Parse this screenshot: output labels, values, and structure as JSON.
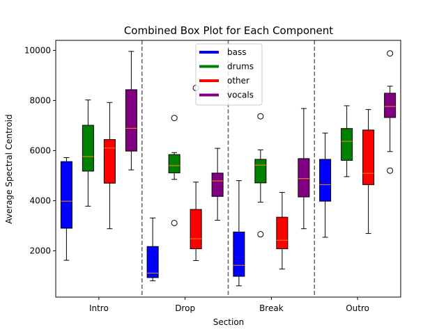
{
  "chart_data": {
    "type": "box",
    "title": "Combined Box Plot for Each Component",
    "xlabel": "Section",
    "ylabel": "Average Spectral Centroid",
    "categories": [
      "Intro",
      "Drop",
      "Break",
      "Outro"
    ],
    "ylim": [
      150,
      10400
    ],
    "yticks": [
      2000,
      4000,
      6000,
      8000,
      10000
    ],
    "grid": false,
    "legend_position": "top-center",
    "section_dividers": true,
    "series": [
      {
        "name": "bass",
        "color": "#0000ff",
        "boxes": [
          {
            "whisker_low": 1620,
            "q1": 2900,
            "median": 3980,
            "q3": 5560,
            "whisker_high": 5720,
            "outliers": []
          },
          {
            "whisker_low": 800,
            "q1": 930,
            "median": 1110,
            "q3": 2170,
            "whisker_high": 3310,
            "outliers": []
          },
          {
            "whisker_low": 600,
            "q1": 980,
            "median": 1420,
            "q3": 2750,
            "whisker_high": 4800,
            "outliers": []
          },
          {
            "whisker_low": 2540,
            "q1": 3980,
            "median": 4640,
            "q3": 5650,
            "whisker_high": 6700,
            "outliers": []
          }
        ]
      },
      {
        "name": "drums",
        "color": "#008000",
        "boxes": [
          {
            "whisker_low": 3780,
            "q1": 5180,
            "median": 5760,
            "q3": 7010,
            "whisker_high": 8020,
            "outliers": []
          },
          {
            "whisker_low": 4850,
            "q1": 5110,
            "median": 5400,
            "q3": 5840,
            "whisker_high": 5920,
            "outliers": [
              7300,
              3110
            ]
          },
          {
            "whisker_low": 3940,
            "q1": 4710,
            "median": 5420,
            "q3": 5650,
            "whisker_high": 6030,
            "outliers": [
              7370,
              2660
            ]
          },
          {
            "whisker_low": 4960,
            "q1": 5610,
            "median": 6370,
            "q3": 6880,
            "whisker_high": 7790,
            "outliers": []
          }
        ]
      },
      {
        "name": "other",
        "color": "#ff0000",
        "boxes": [
          {
            "whisker_low": 2880,
            "q1": 4700,
            "median": 6100,
            "q3": 6440,
            "whisker_high": 7920,
            "outliers": []
          },
          {
            "whisker_low": 1610,
            "q1": 2080,
            "median": 2480,
            "q3": 3650,
            "whisker_high": 4740,
            "outliers": [
              8500
            ]
          },
          {
            "whisker_low": 1270,
            "q1": 2080,
            "median": 2420,
            "q3": 3340,
            "whisker_high": 4330,
            "outliers": []
          },
          {
            "whisker_low": 2690,
            "q1": 4640,
            "median": 5090,
            "q3": 6820,
            "whisker_high": 7640,
            "outliers": []
          }
        ]
      },
      {
        "name": "vocals",
        "color": "#800080",
        "boxes": [
          {
            "whisker_low": 5230,
            "q1": 5980,
            "median": 6890,
            "q3": 8430,
            "whisker_high": 9960,
            "outliers": []
          },
          {
            "whisker_low": 3220,
            "q1": 4170,
            "median": 4790,
            "q3": 5100,
            "whisker_high": 6090,
            "outliers": []
          },
          {
            "whisker_low": 2880,
            "q1": 4150,
            "median": 4880,
            "q3": 5680,
            "whisker_high": 7680,
            "outliers": []
          },
          {
            "whisker_low": 5960,
            "q1": 7320,
            "median": 7760,
            "q3": 8290,
            "whisker_high": 8570,
            "outliers": [
              9880,
              5200
            ]
          }
        ]
      }
    ],
    "median_line_color": "#ff8c00",
    "divider_color": "#666666"
  }
}
